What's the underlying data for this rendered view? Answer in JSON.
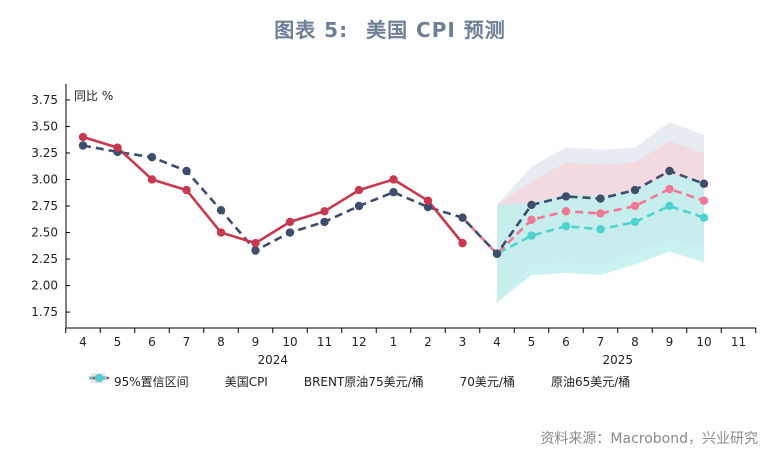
{
  "title": "图表 5:",
  "title_sub": "美国 CPI 预测",
  "source": "资料来源：Macrobond，兴业研究",
  "colors": {
    "cpi": "#c8384e",
    "brent75": "#3d4d6b",
    "p70": "#f07894",
    "p65": "#4cd3cf",
    "band75": "#e3e8f0",
    "band70": "#f5d6dd",
    "band65": "#bff0ee"
  },
  "chart_data": {
    "type": "line",
    "ylabel": "同比 %",
    "ylim": [
      1.6,
      3.9
    ],
    "yticks": [
      "1.75",
      "2.00",
      "2.25",
      "2.50",
      "2.75",
      "3.00",
      "3.25",
      "3.50",
      "3.75"
    ],
    "x_tick_labels": [
      "4",
      "5",
      "6",
      "7",
      "8",
      "9",
      "10",
      "11",
      "12",
      "1",
      "2",
      "3",
      "4",
      "5",
      "6",
      "7",
      "8",
      "9",
      "10",
      "11"
    ],
    "year_labels": [
      "2024",
      "2025"
    ],
    "legend": [
      {
        "key": "band",
        "label": "95%置信区间"
      },
      {
        "key": "cpi",
        "label": "美国CPI"
      },
      {
        "key": "brent75",
        "label": "BRENT原油75美元/桶"
      },
      {
        "key": "p70",
        "label": "70美元/桶"
      },
      {
        "key": "p65",
        "label": "原油65美元/桶"
      }
    ],
    "series": [
      {
        "key": "cpi",
        "name": "美国CPI",
        "x": [
          0,
          1,
          2,
          3,
          4,
          5,
          6,
          7,
          8,
          9,
          10,
          11
        ],
        "values": [
          3.4,
          3.3,
          3.0,
          2.9,
          2.5,
          2.4,
          2.6,
          2.7,
          2.9,
          3.0,
          2.8,
          2.4
        ],
        "dashed": false
      },
      {
        "key": "brent75",
        "name": "BRENT原油75美元/桶",
        "x": [
          0,
          1,
          2,
          3,
          4,
          5,
          6,
          7,
          8,
          9,
          10,
          11,
          12,
          13,
          14,
          15,
          16,
          17,
          18
        ],
        "values": [
          3.32,
          3.26,
          3.21,
          3.08,
          2.71,
          2.33,
          2.5,
          2.6,
          2.75,
          2.88,
          2.74,
          2.64,
          2.3,
          2.76,
          2.84,
          2.82,
          2.9,
          3.08,
          2.96
        ],
        "dashed": true
      },
      {
        "key": "p70",
        "name": "70美元/桶",
        "x": [
          11,
          12,
          13,
          14,
          15,
          16,
          17,
          18
        ],
        "values": [
          2.64,
          2.3,
          2.62,
          2.7,
          2.68,
          2.75,
          2.91,
          2.8
        ],
        "dashed": true
      },
      {
        "key": "p65",
        "name": "原油65美元/桶",
        "x": [
          11,
          12,
          13,
          14,
          15,
          16,
          17,
          18
        ],
        "values": [
          2.64,
          2.3,
          2.47,
          2.56,
          2.53,
          2.6,
          2.75,
          2.64
        ],
        "dashed": true
      }
    ],
    "bands": [
      {
        "key": "band75",
        "x": [
          12,
          13,
          14,
          15,
          16,
          17,
          18
        ],
        "upper": [
          2.76,
          3.12,
          3.3,
          3.28,
          3.3,
          3.54,
          3.42
        ],
        "lower": [
          1.84,
          2.38,
          2.4,
          2.38,
          2.5,
          2.6,
          2.48
        ]
      },
      {
        "key": "band70",
        "x": [
          12,
          13,
          14,
          15,
          16,
          17,
          18
        ],
        "upper": [
          2.76,
          2.98,
          3.16,
          3.14,
          3.16,
          3.36,
          3.25
        ],
        "lower": [
          1.84,
          2.2,
          2.22,
          2.2,
          2.32,
          2.44,
          2.36
        ]
      },
      {
        "key": "band65",
        "x": [
          12,
          13,
          14,
          15,
          16,
          17,
          18
        ],
        "upper": [
          2.76,
          2.78,
          2.86,
          2.84,
          2.9,
          3.05,
          2.98
        ],
        "lower": [
          1.84,
          2.1,
          2.12,
          2.1,
          2.2,
          2.32,
          2.22
        ]
      }
    ]
  }
}
